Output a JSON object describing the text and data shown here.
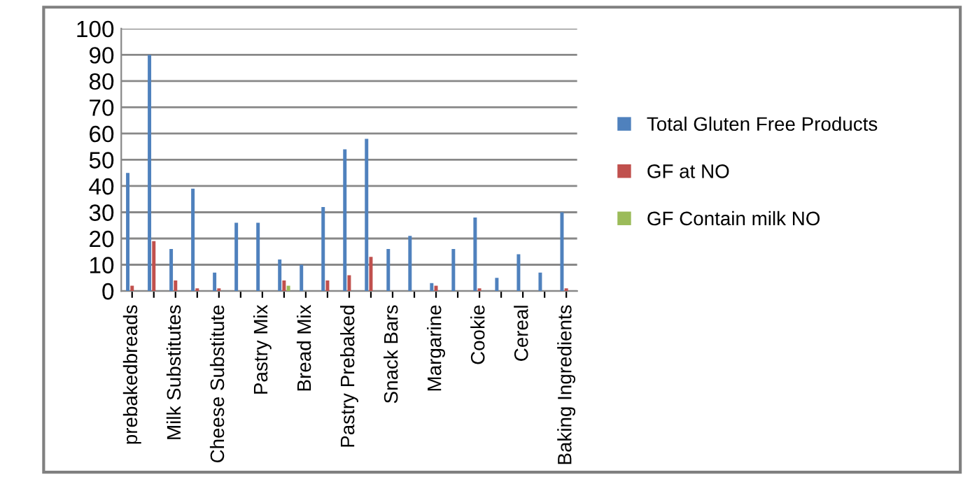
{
  "chart_data": {
    "type": "bar",
    "categories": [
      "prebakedbreads",
      null,
      "Milk Substitutes",
      null,
      "Cheese Substitute",
      null,
      "Pastry Mix",
      null,
      "Bread Mix",
      null,
      "Pastry Prebaked",
      null,
      "Snack Bars",
      null,
      "Margarine",
      null,
      "Cookie",
      null,
      "Cereal",
      null,
      "Baking Ingredients"
    ],
    "series": [
      {
        "name": "Total Gluten Free Products",
        "color": "#4f81bd",
        "values": [
          45,
          90,
          16,
          39,
          7,
          26,
          26,
          12,
          10,
          32,
          54,
          58,
          16,
          21,
          3,
          16,
          28,
          5,
          14,
          7,
          30
        ]
      },
      {
        "name": "GF at NO",
        "color": "#c0504d",
        "values": [
          2,
          19,
          4,
          1,
          1,
          0,
          0,
          4,
          0,
          4,
          6,
          13,
          0,
          0,
          2,
          0,
          1,
          0,
          0,
          0,
          1
        ]
      },
      {
        "name": "GF Contain milk NO",
        "color": "#9bbb59",
        "values": [
          0,
          0,
          0,
          0,
          0,
          0,
          0,
          2,
          0,
          0,
          0,
          0,
          0,
          0,
          0,
          0,
          0,
          0,
          0,
          0,
          0
        ]
      }
    ],
    "ylim": [
      0,
      100
    ],
    "yticks": [
      0,
      10,
      20,
      30,
      40,
      50,
      60,
      70,
      80,
      90,
      100
    ],
    "grid": "y",
    "legend": "right"
  }
}
